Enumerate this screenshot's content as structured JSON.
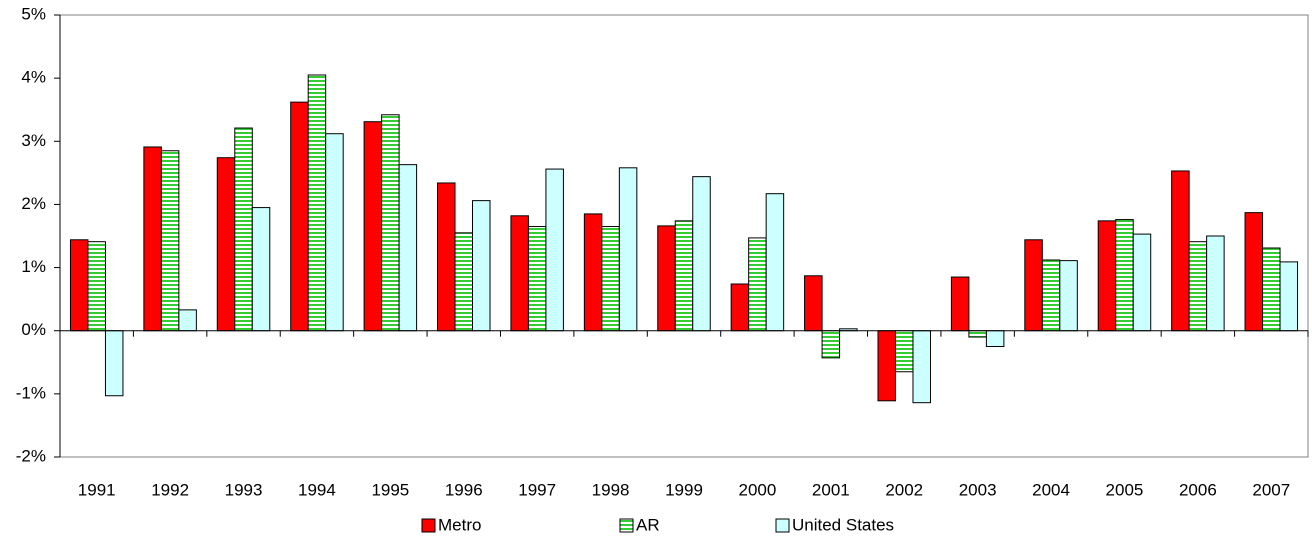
{
  "chart_data": {
    "type": "bar",
    "categories": [
      "1991",
      "1992",
      "1993",
      "1994",
      "1995",
      "1996",
      "1997",
      "1998",
      "1999",
      "2000",
      "2001",
      "2002",
      "2003",
      "2004",
      "2005",
      "2006",
      "2007"
    ],
    "series": [
      {
        "name": "Metro",
        "color": "#ff0000",
        "values": [
          1.44,
          2.91,
          2.74,
          3.62,
          3.31,
          2.34,
          1.82,
          1.85,
          1.66,
          0.74,
          0.87,
          -1.11,
          0.85,
          1.44,
          1.74,
          2.53,
          1.87
        ]
      },
      {
        "name": "AR",
        "color": "#33cc33",
        "pattern": "horizontal-stripes",
        "values": [
          1.41,
          2.85,
          3.21,
          4.05,
          3.42,
          1.55,
          1.65,
          1.65,
          1.74,
          1.47,
          -0.43,
          -0.65,
          -0.1,
          1.12,
          1.76,
          1.41,
          1.31
        ]
      },
      {
        "name": "United States",
        "color": "#ccffff",
        "values": [
          -1.03,
          0.33,
          1.95,
          3.12,
          2.63,
          2.06,
          2.56,
          2.58,
          2.44,
          2.17,
          0.03,
          -1.14,
          -0.25,
          1.11,
          1.53,
          1.5,
          1.09
        ]
      }
    ],
    "ylim": [
      -2,
      5
    ],
    "yticks": [
      {
        "value": -2,
        "label": "-2%"
      },
      {
        "value": -1,
        "label": "-1%"
      },
      {
        "value": 0,
        "label": "0%"
      },
      {
        "value": 1,
        "label": "1%"
      },
      {
        "value": 2,
        "label": "2%"
      },
      {
        "value": 3,
        "label": "3%"
      },
      {
        "value": 4,
        "label": "4%"
      },
      {
        "value": 5,
        "label": "5%"
      }
    ],
    "grid": false,
    "legend": "bottom"
  }
}
